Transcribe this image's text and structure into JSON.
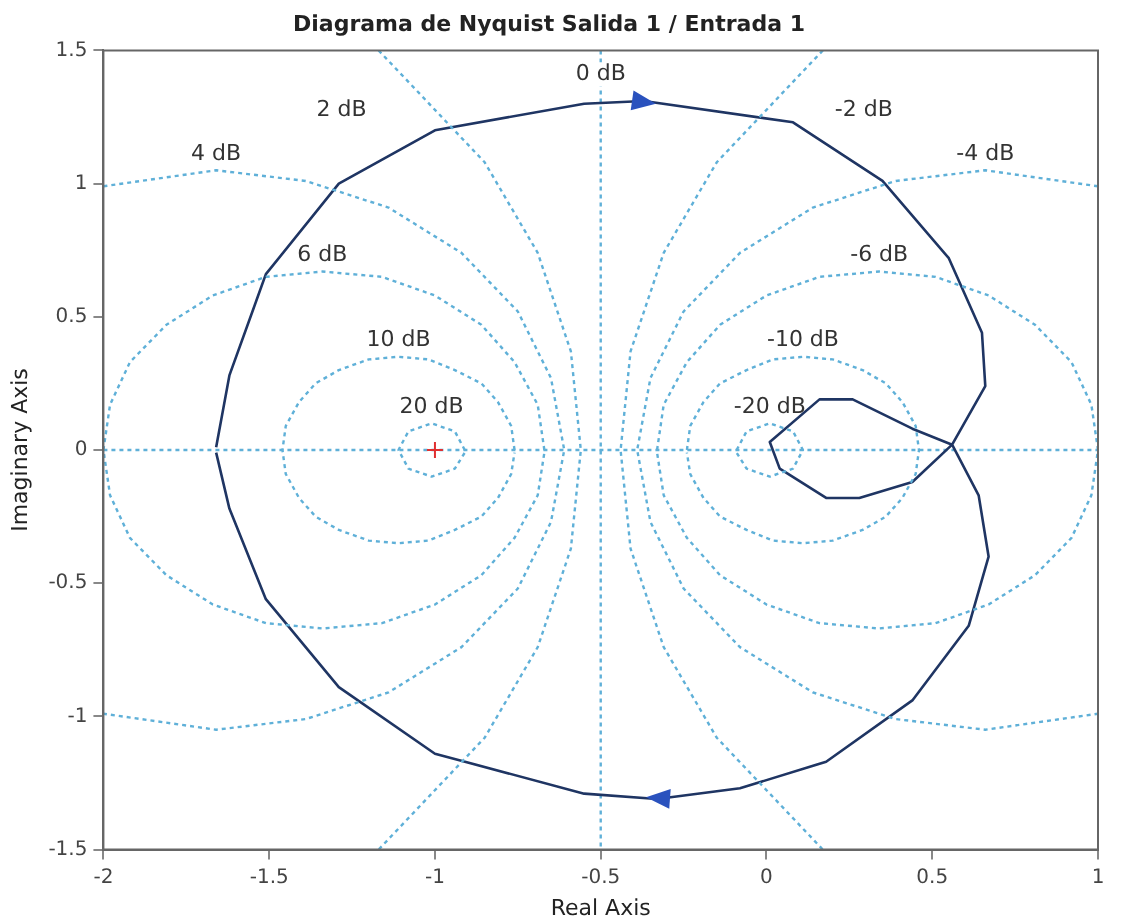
{
  "chart_data": {
    "type": "line",
    "title": "Diagrama de Nyquist Salida 1 / Entrada 1",
    "xlabel": "Real Axis",
    "ylabel": "Imaginary Axis",
    "xlim": [
      -2,
      1
    ],
    "xticks": [
      -2,
      -1.5,
      -1,
      -0.5,
      0,
      0.5,
      1
    ],
    "ylim": [
      -1.5,
      1.5
    ],
    "yticks": [
      -1.5,
      -1,
      -0.5,
      0,
      0.5,
      1,
      1.5
    ],
    "grid": false,
    "legend": false,
    "ref_lines": [
      {
        "axis": "x",
        "value": -0.5,
        "label": "0 dB",
        "color": "#5fb0d8",
        "line_style": "dotted"
      },
      {
        "axis": "y",
        "value": 0,
        "color": "#5fb0d8",
        "line_style": "dotted"
      }
    ],
    "series": [
      {
        "name": "2 dB",
        "color": "#5fb0d8",
        "line_style": "dotted",
        "x": [
          -1.17,
          -0.85,
          -0.69,
          -0.59,
          -0.56,
          -0.59,
          -0.69,
          -0.85,
          -1.17
        ],
        "values": [
          1.5,
          1.08,
          0.74,
          0.37,
          0,
          -0.37,
          -0.74,
          -1.08,
          -1.5
        ]
      },
      {
        "name": "-2 dB",
        "color": "#5fb0d8",
        "line_style": "dotted",
        "x": [
          0.17,
          -0.15,
          -0.31,
          -0.41,
          -0.44,
          -0.41,
          -0.31,
          -0.15,
          0.17
        ],
        "values": [
          1.5,
          1.08,
          0.74,
          0.37,
          0,
          -0.37,
          -0.74,
          -1.08,
          -1.5
        ]
      },
      {
        "name": "4 dB",
        "color": "#5fb0d8",
        "line_style": "dotted",
        "x": [
          -2,
          -1.66,
          -1.39,
          -1.14,
          -0.92,
          -0.75,
          -0.65,
          -0.61,
          -0.65,
          -0.75,
          -0.92,
          -1.14,
          -1.39,
          -1.66,
          -2
        ],
        "values": [
          0.99,
          1.05,
          1.01,
          0.91,
          0.74,
          0.52,
          0.27,
          0,
          -0.27,
          -0.52,
          -0.74,
          -0.91,
          -1.01,
          -1.05,
          -0.99
        ]
      },
      {
        "name": "-4 dB",
        "color": "#5fb0d8",
        "line_style": "dotted",
        "x": [
          1,
          0.66,
          0.39,
          0.14,
          -0.08,
          -0.25,
          -0.35,
          -0.39,
          -0.35,
          -0.25,
          -0.08,
          0.14,
          0.39,
          0.66,
          1
        ],
        "values": [
          0.99,
          1.05,
          1.01,
          0.91,
          0.74,
          0.52,
          0.27,
          0,
          -0.27,
          -0.52,
          -0.74,
          -0.91,
          -1.01,
          -1.05,
          -0.99
        ]
      },
      {
        "name": "6 dB",
        "color": "#5fb0d8",
        "line_style": "dotted",
        "x": [
          -0.67,
          -0.69,
          -0.76,
          -0.86,
          -1,
          -1.16,
          -1.34,
          -1.51,
          -1.67,
          -1.81,
          -1.92,
          -1.98,
          -2,
          -1.98,
          -1.92,
          -1.81,
          -1.67,
          -1.51,
          -1.34,
          -1.16,
          -1,
          -0.86,
          -0.76,
          -0.69,
          -0.67
        ],
        "values": [
          0,
          0.17,
          0.33,
          0.47,
          0.58,
          0.65,
          0.67,
          0.65,
          0.58,
          0.47,
          0.33,
          0.17,
          0,
          -0.17,
          -0.33,
          -0.47,
          -0.58,
          -0.65,
          -0.67,
          -0.65,
          -0.58,
          -0.47,
          -0.33,
          -0.17,
          -0.01
        ]
      },
      {
        "name": "-6 dB",
        "color": "#5fb0d8",
        "line_style": "dotted",
        "x": [
          -0.33,
          -0.31,
          -0.24,
          -0.14,
          0,
          0.16,
          0.34,
          0.51,
          0.67,
          0.81,
          0.92,
          0.98,
          1,
          0.98,
          0.92,
          0.81,
          0.67,
          0.51,
          0.34,
          0.16,
          0,
          -0.14,
          -0.24,
          -0.31,
          -0.33
        ],
        "values": [
          0,
          0.17,
          0.33,
          0.47,
          0.58,
          0.65,
          0.67,
          0.65,
          0.58,
          0.47,
          0.33,
          0.17,
          0,
          -0.17,
          -0.33,
          -0.47,
          -0.58,
          -0.65,
          -0.67,
          -0.65,
          -0.58,
          -0.47,
          -0.33,
          -0.17,
          -0.01
        ]
      },
      {
        "name": "10 dB",
        "color": "#5fb0d8",
        "line_style": "dotted",
        "x": [
          -0.76,
          -0.77,
          -0.81,
          -0.86,
          -0.94,
          -1.02,
          -1.11,
          -1.2,
          -1.29,
          -1.36,
          -1.41,
          -1.45,
          -1.46,
          -1.45,
          -1.41,
          -1.36,
          -1.29,
          -1.2,
          -1.11,
          -1.02,
          -0.94,
          -0.86,
          -0.81,
          -0.77,
          -0.76
        ],
        "values": [
          0,
          0.09,
          0.18,
          0.25,
          0.3,
          0.34,
          0.35,
          0.34,
          0.3,
          0.25,
          0.18,
          0.09,
          0,
          -0.09,
          -0.18,
          -0.25,
          -0.3,
          -0.34,
          -0.35,
          -0.34,
          -0.3,
          -0.25,
          -0.18,
          -0.09,
          -0.01
        ]
      },
      {
        "name": "-10 dB",
        "color": "#5fb0d8",
        "line_style": "dotted",
        "x": [
          -0.24,
          -0.23,
          -0.19,
          -0.14,
          -0.06,
          0.02,
          0.11,
          0.2,
          0.29,
          0.36,
          0.41,
          0.45,
          0.46,
          0.45,
          0.41,
          0.36,
          0.29,
          0.2,
          0.11,
          0.02,
          -0.06,
          -0.14,
          -0.19,
          -0.23,
          -0.24
        ],
        "values": [
          0,
          0.09,
          0.18,
          0.25,
          0.3,
          0.34,
          0.35,
          0.34,
          0.3,
          0.25,
          0.18,
          0.09,
          0,
          -0.09,
          -0.18,
          -0.25,
          -0.3,
          -0.34,
          -0.35,
          -0.34,
          -0.3,
          -0.25,
          -0.18,
          -0.09,
          -0.01
        ]
      },
      {
        "name": "20 dB",
        "color": "#5fb0d8",
        "line_style": "dotted",
        "x": [
          -0.91,
          -0.94,
          -1.01,
          -1.08,
          -1.11,
          -1.08,
          -1.01,
          -0.94,
          -0.91
        ],
        "values": [
          0,
          0.07,
          0.1,
          0.07,
          0,
          -0.07,
          -0.1,
          -0.07,
          -0.01
        ]
      },
      {
        "name": "-20 dB",
        "color": "#5fb0d8",
        "line_style": "dotted",
        "x": [
          -0.09,
          -0.06,
          0.01,
          0.08,
          0.11,
          0.08,
          0.01,
          -0.06,
          -0.09
        ],
        "values": [
          0,
          0.07,
          0.1,
          0.07,
          0,
          -0.07,
          -0.1,
          -0.07,
          -0.01
        ]
      },
      {
        "color": "#1f3563",
        "line_style": "solid",
        "x": [
          -1.66,
          -1.62,
          -1.51,
          -1.29,
          -1.0,
          -0.55,
          -0.37,
          0.08,
          0.35,
          0.55,
          0.65,
          0.66,
          0.56,
          0.44,
          0.28,
          0.18,
          0.04,
          0.01,
          0.16,
          0.26,
          0.44,
          0.56,
          0.64,
          0.67,
          0.61,
          0.44,
          0.18,
          -0.08,
          -0.33,
          -0.55,
          -1.0,
          -1.29,
          -1.51,
          -1.62,
          -1.66
        ],
        "values": [
          0.01,
          0.28,
          0.66,
          1.0,
          1.2,
          1.3,
          1.31,
          1.23,
          1.01,
          0.72,
          0.44,
          0.24,
          0.02,
          -0.12,
          -0.18,
          -0.18,
          -0.07,
          0.03,
          0.19,
          0.19,
          0.08,
          0.02,
          -0.17,
          -0.4,
          -0.66,
          -0.94,
          -1.17,
          -1.27,
          -1.31,
          -1.29,
          -1.14,
          -0.89,
          -0.56,
          -0.22,
          -0.01
        ]
      },
      {
        "type": "scatter",
        "color": "#e03030",
        "marker": "cross",
        "x": [
          -1
        ],
        "values": [
          0
        ]
      }
    ]
  }
}
